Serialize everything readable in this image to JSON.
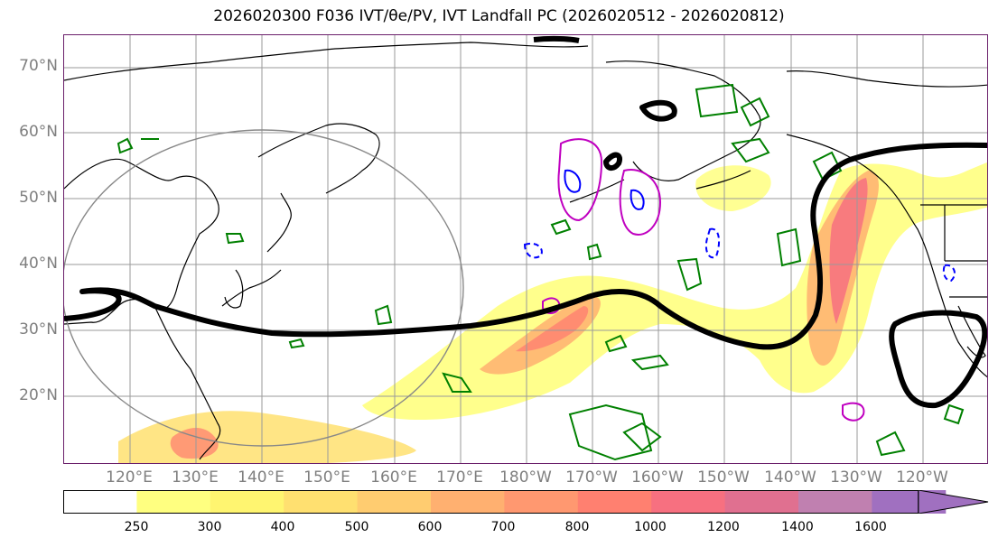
{
  "title": "2026020300 F036 IVT/θe/PV, IVT Landfall PC (2026020512 - 2026020812)",
  "map": {
    "lat_labels": [
      "70°N",
      "60°N",
      "50°N",
      "40°N",
      "30°N",
      "20°N"
    ],
    "lon_labels": [
      "120°E",
      "130°E",
      "140°E",
      "150°E",
      "160°E",
      "170°E",
      "180°W",
      "170°W",
      "160°W",
      "150°W",
      "140°W",
      "130°W",
      "120°W"
    ],
    "extent": {
      "lon_min": 110,
      "lon_max": 250,
      "lat_min": 10,
      "lat_max": 75
    },
    "colors": {
      "coastline": "#000000",
      "gridline": "#9a9a9a",
      "contour_thick": "#000000",
      "theta_e": "#008000",
      "pv_positive": "#c000c0",
      "pv_negative": "#0000ff",
      "frame": "#6a1f6a"
    }
  },
  "colorbar": {
    "labels": [
      "250",
      "300",
      "400",
      "500",
      "600",
      "700",
      "800",
      "1000",
      "1200",
      "1400",
      "1600"
    ],
    "levels": [
      250,
      300,
      400,
      500,
      600,
      700,
      800,
      1000,
      1200,
      1400,
      1600
    ],
    "colors": [
      "#ffff80",
      "#fff570",
      "#ffe070",
      "#ffcc70",
      "#ffb070",
      "#ff9870",
      "#ff8070",
      "#f77080",
      "#e07090",
      "#c080b0",
      "#a070c0"
    ],
    "extend": "max"
  }
}
